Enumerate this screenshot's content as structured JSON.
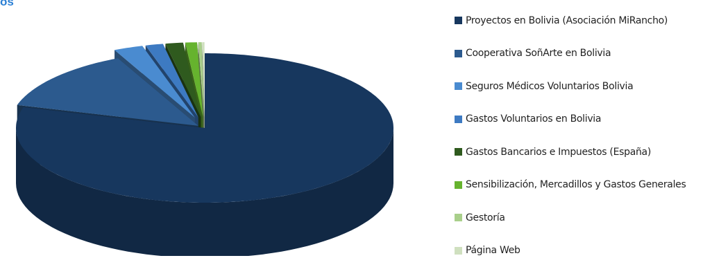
{
  "title_fragment": "os",
  "chart_data": {
    "type": "pie",
    "three_d": true,
    "exploded": true,
    "grid": false,
    "legend_position": "right",
    "categories": [
      "Proyectos en Bolivia (Asociación MiRancho)",
      "Cooperativa SoñArte en Bolivia",
      "Seguros Médicos Voluntarios Bolivia",
      "Gastos Voluntarios en Bolivia",
      "Gastos Bancarios e Impuestos (España)",
      "Sensibilización, Mercadillos y Gastos Generales",
      "Gestoría",
      "Página Web"
    ],
    "values": [
      79.5,
      13.5,
      2.5,
      1.5,
      1.5,
      1.0,
      0.3,
      0.2
    ],
    "colors": [
      "#17375e",
      "#2c5a8e",
      "#4a8bd0",
      "#3d7ac2",
      "#2f5a1e",
      "#66b32e",
      "#a9cf8b",
      "#cfe0bf"
    ]
  }
}
